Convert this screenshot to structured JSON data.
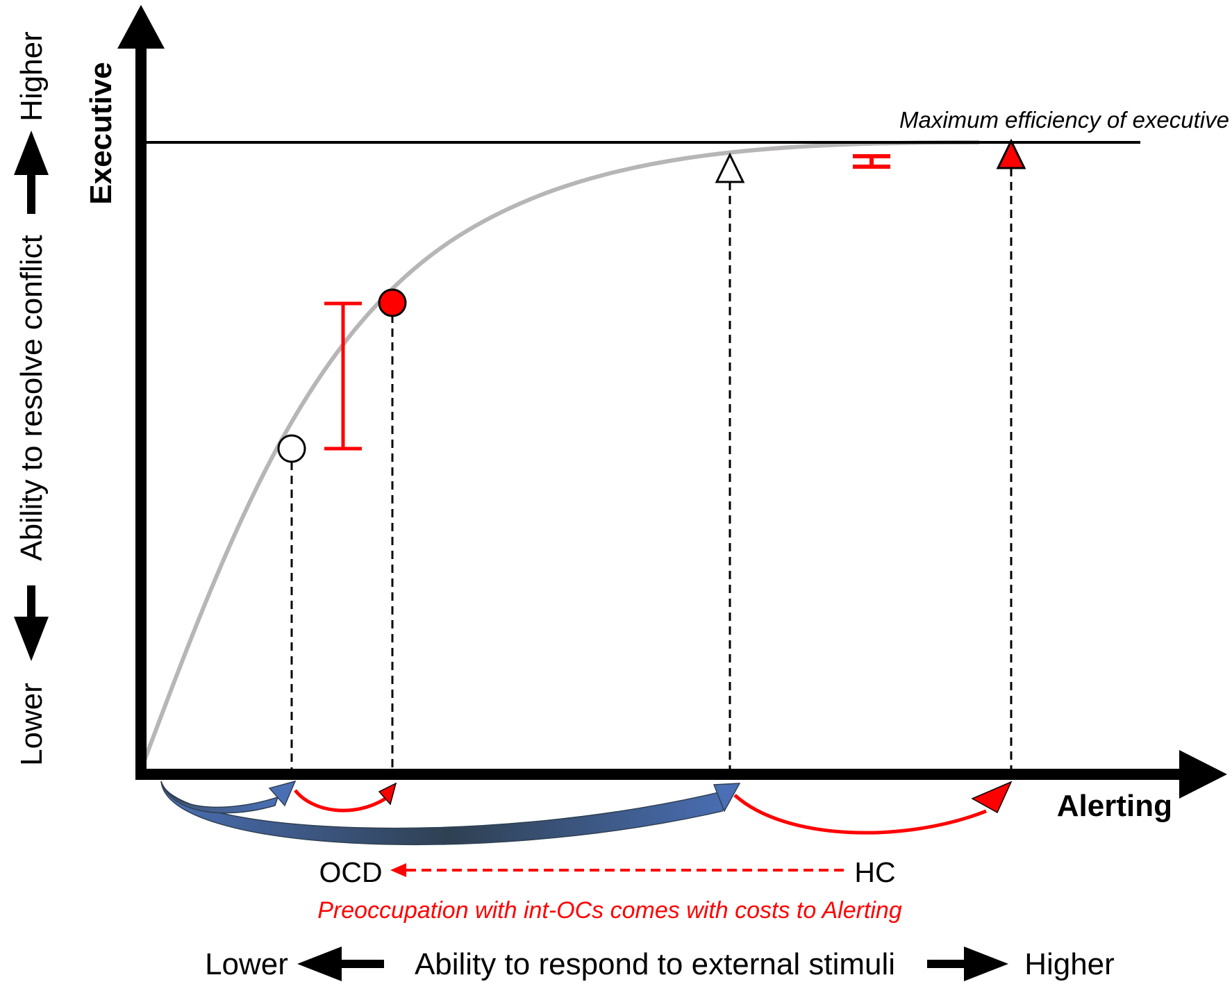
{
  "labels": {
    "y_axis_title": "Executive",
    "x_axis_title": "Alerting",
    "max_line_label": "Maximum efficiency of executive",
    "group_ocd": "OCD",
    "group_hc": "HC",
    "cost_note": "Preoccupation with int-OCs comes with costs to Alerting",
    "y_dim": {
      "low": "Lower",
      "text": "Ability to resolve conflict",
      "high": "Higher"
    },
    "x_dim": {
      "low": "Lower",
      "text": "Ability to respond to external stimuli",
      "high": "Higher"
    }
  },
  "colors": {
    "axis": "#000000",
    "curve": "#b7b5b6",
    "red": "#ff0000",
    "blue": "#4a6fb5",
    "dark_blue": "#34495e",
    "white": "#ffffff"
  },
  "markers": [
    {
      "id": "ocd-executive",
      "shape": "circle",
      "fill": "white"
    },
    {
      "id": "hc-executive",
      "shape": "circle",
      "fill": "red"
    },
    {
      "id": "ocd-alerting",
      "shape": "triangle",
      "fill": "white"
    },
    {
      "id": "hc-alerting",
      "shape": "triangle",
      "fill": "red"
    }
  ]
}
